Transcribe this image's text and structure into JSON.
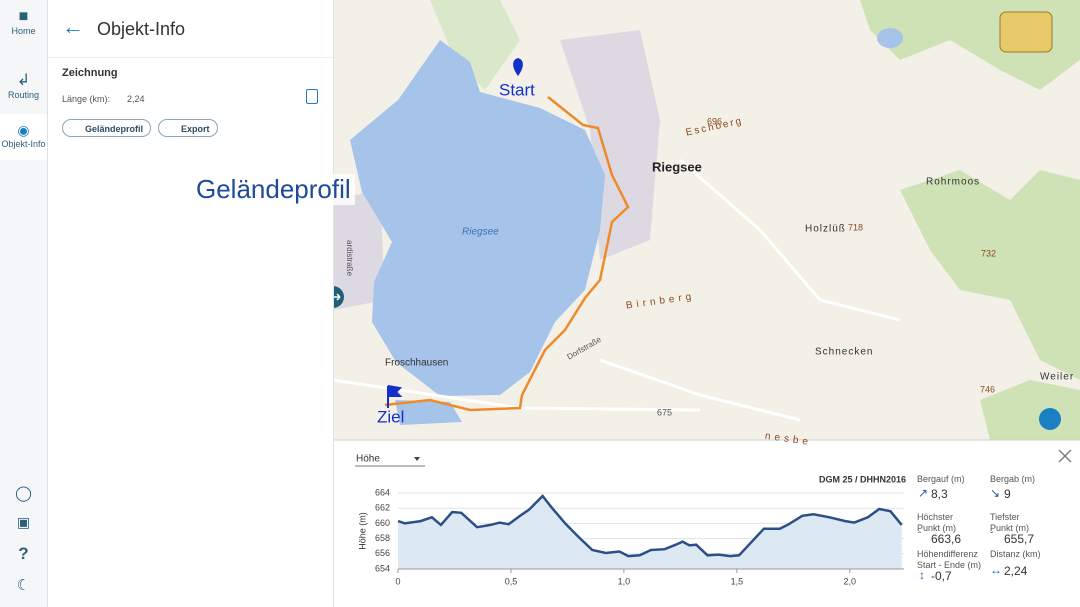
{
  "sidebar": {
    "items": [
      "Home",
      "Routing",
      "Objekt-Info"
    ]
  },
  "panel": {
    "title": "Objekt-Info",
    "section": "Zeichnung",
    "length_label": "Länge (km):",
    "length_value": "2,24",
    "buttons": [
      "Geländeprofil",
      "Export"
    ]
  },
  "annotation": "Geländeprofil",
  "map": {
    "labels": [
      "Start",
      "Ziel",
      "Riegsee",
      "Riegsee",
      "Eschberg",
      "696",
      "Rohrmoos",
      "Holzlüß",
      "718",
      "732",
      "Birnberg",
      "Schnecken",
      "746",
      "Weiler",
      "Froschhausen",
      "Dorfstraße",
      "675",
      "ardistraße",
      "nesbe"
    ]
  },
  "profile": {
    "dropdown": "Höhe",
    "source": "DGM 25 / DHHN2016",
    "stats": [
      {
        "label": "Bergauf (m)",
        "value": "8,3"
      },
      {
        "label": "Bergab (m)",
        "value": "9"
      },
      {
        "label": "Höchster Punkt (m)",
        "value": "663,6"
      },
      {
        "label": "Tiefster Punkt (m)",
        "value": "655,7"
      },
      {
        "label": "Höhendifferenz Start - Ende (m)",
        "value": "-0,7"
      },
      {
        "label": "Distanz (km)",
        "value": "2,24"
      }
    ]
  },
  "chart_data": {
    "type": "line",
    "ylabel": "Höhe (m)",
    "color": "#2b4f86",
    "fill": "#dce8f2",
    "x": [
      0,
      0.03,
      0.1,
      0.15,
      0.19,
      0.24,
      0.28,
      0.35,
      0.41,
      0.45,
      0.49,
      0.55,
      0.58,
      0.64,
      0.68,
      0.74,
      0.8,
      0.86,
      0.92,
      0.98,
      1.02,
      1.07,
      1.12,
      1.18,
      1.23,
      1.26,
      1.29,
      1.32,
      1.37,
      1.42,
      1.47,
      1.51,
      1.56,
      1.62,
      1.69,
      1.73,
      1.79,
      1.84,
      1.91,
      1.98,
      2.02,
      2.08,
      2.13,
      2.18,
      2.23
    ],
    "values": [
      660.3,
      660.0,
      660.3,
      660.8,
      659.8,
      661.5,
      661.4,
      659.5,
      659.8,
      660.1,
      659.9,
      661.2,
      661.8,
      663.6,
      662.1,
      660.0,
      658.2,
      656.5,
      656.1,
      656.3,
      655.7,
      655.8,
      656.5,
      656.6,
      657.2,
      657.6,
      657.1,
      657.2,
      655.8,
      655.9,
      655.7,
      655.8,
      657.4,
      659.3,
      659.3,
      659.9,
      661.0,
      661.2,
      660.8,
      660.3,
      660.1,
      660.8,
      661.9,
      661.6,
      659.8
    ],
    "xlim": [
      0,
      2.24
    ],
    "ylim": [
      654,
      664
    ],
    "xticks": [
      0,
      {
        "value": 0.5,
        "label": "0,5"
      },
      {
        "value": 1,
        "label": "1,0"
      },
      {
        "value": 1.5,
        "label": "1,5"
      },
      {
        "value": 2,
        "label": "2,0"
      }
    ],
    "yticks": [
      654,
      656,
      658,
      660,
      662,
      664
    ],
    "grid": true
  }
}
